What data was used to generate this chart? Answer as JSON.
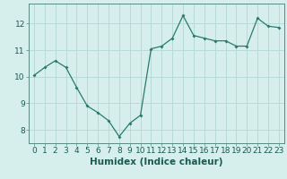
{
  "x": [
    0,
    1,
    2,
    3,
    4,
    5,
    6,
    7,
    8,
    9,
    10,
    11,
    12,
    13,
    14,
    15,
    16,
    17,
    18,
    19,
    20,
    21,
    22,
    23
  ],
  "y": [
    10.05,
    10.35,
    10.6,
    10.35,
    9.6,
    8.9,
    8.65,
    8.35,
    7.75,
    8.25,
    8.55,
    11.05,
    11.15,
    11.45,
    12.3,
    11.55,
    11.45,
    11.35,
    11.35,
    11.15,
    11.15,
    12.2,
    11.9,
    11.85
  ],
  "xlabel": "Humidex (Indice chaleur)",
  "ylim": [
    7.5,
    12.75
  ],
  "xlim": [
    -0.5,
    23.5
  ],
  "line_color": "#2a7a6e",
  "marker": "D",
  "marker_size": 2.0,
  "bg_color": "#d6efed",
  "grid_color": "#b8dad8",
  "yticks": [
    8,
    9,
    10,
    11,
    12
  ],
  "xticks": [
    0,
    1,
    2,
    3,
    4,
    5,
    6,
    7,
    8,
    9,
    10,
    11,
    12,
    13,
    14,
    15,
    16,
    17,
    18,
    19,
    20,
    21,
    22,
    23
  ],
  "xlabel_fontsize": 7.5,
  "tick_fontsize": 6.5
}
